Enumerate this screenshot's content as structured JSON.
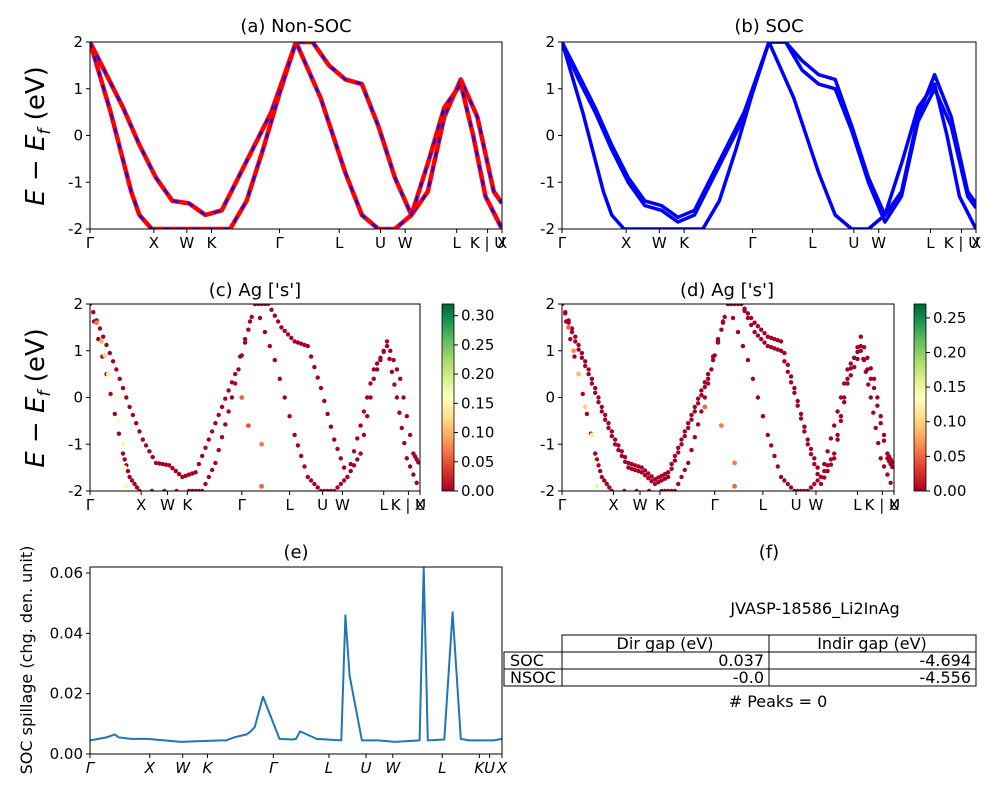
{
  "figure": {
    "band_ylabel": "E − E_f (eV)",
    "kpath_labels": [
      "Γ",
      "X",
      "W",
      "K",
      "Γ",
      "L",
      "U",
      "W",
      "L",
      "K | U",
      "X"
    ],
    "spillage_kpath_labels": [
      "Γ",
      "X",
      "W",
      "K",
      "Γ",
      "L",
      "U",
      "W",
      "L",
      "K",
      "U",
      "X"
    ]
  },
  "chart_data": [
    {
      "id": "a",
      "type": "line",
      "title": "(a) Non-SOC",
      "ylabel": "E − E_f (eV)",
      "ylim": [
        -2,
        2
      ],
      "yticks": [
        -2,
        -1,
        0,
        1,
        2
      ],
      "xticks": [
        "Γ",
        "X",
        "W",
        "K",
        "Γ",
        "L",
        "U",
        "W",
        "L",
        "K | U",
        "X"
      ],
      "series": [
        {
          "color": "#ff0000",
          "style": "solid",
          "x": [
            0,
            0.4,
            0.8,
            1.2,
            1.6,
            2.0,
            2.4,
            2.8,
            3.2,
            3.6,
            4.0,
            4.4,
            5.0,
            5.4,
            5.8,
            6.2,
            6.6,
            7.0,
            7.4,
            7.8,
            8.2,
            8.6,
            9.0,
            9.4,
            9.8,
            10.0
          ],
          "y": [
            2.0,
            1.3,
            0.6,
            -0.2,
            -0.9,
            -1.4,
            -1.45,
            -1.7,
            -1.6,
            -0.9,
            -0.2,
            0.5,
            2.0,
            2.0,
            1.5,
            1.2,
            1.1,
            0.2,
            -0.9,
            -1.7,
            -1.2,
            0.4,
            1.2,
            0.4,
            -1.2,
            -1.45
          ]
        },
        {
          "color": "#ff0000",
          "style": "solid",
          "x": [
            0,
            0.5,
            1.0,
            1.2,
            1.5,
            3.0,
            3.4,
            3.8,
            4.2,
            4.6,
            5.0,
            5.6,
            6.2,
            6.6,
            7.0,
            7.4,
            7.8,
            8.2,
            8.6,
            9.0,
            9.3,
            9.6,
            10.0
          ],
          "y": [
            2.0,
            0.5,
            -1.2,
            -1.7,
            -2.0,
            -2.0,
            -2.0,
            -1.4,
            -0.3,
            0.9,
            2.0,
            0.8,
            -0.8,
            -1.7,
            -2.0,
            -2.0,
            -1.7,
            -0.6,
            0.6,
            1.1,
            0.0,
            -1.3,
            -2.0
          ]
        }
      ]
    },
    {
      "id": "b",
      "type": "line",
      "title": "(b) SOC",
      "ylim": [
        -2,
        2
      ],
      "yticks": [
        -2,
        -1,
        0,
        1,
        2
      ],
      "xticks": [
        "Γ",
        "X",
        "W",
        "K",
        "Γ",
        "L",
        "U",
        "W",
        "L",
        "K | U",
        "X"
      ],
      "series": [
        {
          "color": "#0000ff",
          "style": "solid",
          "x": [
            0,
            0.4,
            0.8,
            1.2,
            1.6,
            2.0,
            2.4,
            2.8,
            3.2,
            3.6,
            4.0,
            4.4,
            5.0,
            5.4,
            5.8,
            6.2,
            6.6,
            7.0,
            7.4,
            7.8,
            8.2,
            8.6,
            9.0,
            9.4,
            9.8,
            10.0
          ],
          "y": [
            2.0,
            1.3,
            0.6,
            -0.2,
            -0.9,
            -1.4,
            -1.5,
            -1.75,
            -1.6,
            -0.9,
            -0.2,
            0.5,
            2.0,
            2.0,
            1.6,
            1.3,
            1.2,
            0.2,
            -0.9,
            -1.7,
            -1.2,
            0.4,
            1.3,
            0.4,
            -1.2,
            -1.45
          ]
        },
        {
          "color": "#0000ff",
          "style": "solid",
          "x": [
            0,
            0.4,
            0.8,
            1.2,
            1.6,
            2.0,
            2.4,
            2.8,
            3.2,
            3.6,
            4.0,
            4.4,
            5.0,
            5.4,
            5.8,
            6.2,
            6.6,
            7.0,
            7.4,
            7.8,
            8.2,
            8.6,
            9.0,
            9.4,
            9.8,
            10.0
          ],
          "y": [
            2.0,
            1.2,
            0.5,
            -0.3,
            -1.0,
            -1.5,
            -1.6,
            -1.85,
            -1.7,
            -1.0,
            -0.3,
            0.4,
            2.0,
            2.0,
            1.4,
            1.1,
            1.0,
            0.1,
            -1.0,
            -1.85,
            -1.3,
            0.3,
            1.0,
            0.2,
            -1.3,
            -1.55
          ]
        },
        {
          "color": "#0000ff",
          "style": "solid",
          "x": [
            0,
            0.5,
            1.0,
            1.2,
            1.5,
            3.0,
            3.4,
            3.8,
            4.2,
            4.6,
            5.0,
            5.6,
            6.2,
            6.6,
            7.0,
            7.4,
            7.8,
            8.2,
            8.6,
            9.0,
            9.3,
            9.6,
            10.0
          ],
          "y": [
            2.0,
            0.5,
            -1.2,
            -1.7,
            -2.0,
            -2.0,
            -2.0,
            -1.4,
            -0.3,
            0.9,
            2.0,
            0.8,
            -0.8,
            -1.7,
            -2.0,
            -2.0,
            -1.7,
            -0.6,
            0.6,
            1.1,
            0.0,
            -1.3,
            -2.0
          ]
        }
      ]
    },
    {
      "id": "c",
      "type": "scatter",
      "title": "(c)  Ag ['s']",
      "ylabel": "E − E_f (eV)",
      "ylim": [
        -2,
        2
      ],
      "yticks": [
        -2,
        -1,
        0,
        1,
        2
      ],
      "xticks": [
        "Γ",
        "X",
        "W",
        "K",
        "Γ",
        "L",
        "U",
        "W",
        "L",
        "K | U",
        "X"
      ],
      "colorbar": {
        "min": 0.0,
        "max": 0.32,
        "ticks": [
          "0.00",
          "0.05",
          "0.10",
          "0.15",
          "0.20",
          "0.25",
          "0.30"
        ],
        "cmap": "RdYlGn"
      },
      "highlight_points": [
        {
          "x": 0.2,
          "y": 1.6,
          "v": 0.07
        },
        {
          "x": 0.35,
          "y": 1.2,
          "v": 0.1
        },
        {
          "x": 0.45,
          "y": 0.9,
          "v": 0.12
        },
        {
          "x": 0.55,
          "y": 0.5,
          "v": 0.14
        },
        {
          "x": 0.7,
          "y": 0.0,
          "v": 0.16
        },
        {
          "x": 0.85,
          "y": -0.5,
          "v": 0.16
        },
        {
          "x": 1.0,
          "y": -1.0,
          "v": 0.15
        },
        {
          "x": 1.05,
          "y": -1.5,
          "v": 0.16
        },
        {
          "x": 1.1,
          "y": -1.9,
          "v": 0.17
        },
        {
          "x": 4.6,
          "y": 0.0,
          "v": 0.06
        },
        {
          "x": 4.8,
          "y": -0.6,
          "v": 0.05
        },
        {
          "x": 5.2,
          "y": -1.0,
          "v": 0.07
        },
        {
          "x": 5.2,
          "y": -1.9,
          "v": 0.06
        }
      ],
      "base_value": 0.0
    },
    {
      "id": "d",
      "type": "scatter",
      "title": "(d) Ag ['s']",
      "ylim": [
        -2,
        2
      ],
      "yticks": [
        -2,
        -1,
        0,
        1,
        2
      ],
      "xticks": [
        "Γ",
        "X",
        "W",
        "K",
        "Γ",
        "L",
        "U",
        "W",
        "L",
        "K | U",
        "X"
      ],
      "colorbar": {
        "min": 0.0,
        "max": 0.27,
        "ticks": [
          "0.00",
          "0.05",
          "0.10",
          "0.15",
          "0.20",
          "0.25"
        ],
        "cmap": "RdYlGn"
      },
      "highlight_points": [
        {
          "x": 0.2,
          "y": 1.5,
          "v": 0.05
        },
        {
          "x": 0.35,
          "y": 1.0,
          "v": 0.07
        },
        {
          "x": 0.5,
          "y": 0.5,
          "v": 0.09
        },
        {
          "x": 0.7,
          "y": -0.2,
          "v": 0.1
        },
        {
          "x": 0.9,
          "y": -0.8,
          "v": 0.12
        },
        {
          "x": 1.0,
          "y": -1.4,
          "v": 0.14
        },
        {
          "x": 1.05,
          "y": -1.9,
          "v": 0.15
        },
        {
          "x": 4.3,
          "y": -0.2,
          "v": 0.05
        },
        {
          "x": 4.8,
          "y": -0.6,
          "v": 0.06
        },
        {
          "x": 5.2,
          "y": -1.4,
          "v": 0.06
        },
        {
          "x": 5.2,
          "y": -1.9,
          "v": 0.05
        }
      ],
      "base_value": 0.0
    },
    {
      "id": "e",
      "type": "line",
      "title": "(e)",
      "ylabel": "SOC spillage (chg. den. unit)",
      "ylim": [
        0,
        0.062
      ],
      "yticks": [
        "0.00",
        "0.02",
        "0.04",
        "0.06"
      ],
      "xticks": [
        "Γ",
        "X",
        "W",
        "K",
        "Γ",
        "L",
        "U",
        "W",
        "L",
        "K",
        "U",
        "X"
      ],
      "series": [
        {
          "color": "#1f77b4",
          "x": [
            0,
            0.4,
            0.6,
            0.7,
            1.0,
            1.4,
            1.8,
            2.2,
            2.6,
            3.2,
            3.3,
            3.5,
            3.8,
            3.9,
            4.0,
            4.2,
            4.6,
            4.9,
            5.0,
            5.1,
            5.5,
            6.1,
            6.2,
            6.3,
            6.6,
            7.0,
            7.4,
            8.0,
            8.1,
            8.2,
            8.6,
            8.8,
            8.9,
            9.0,
            9.2,
            9.8,
            10.0
          ],
          "y": [
            0.0045,
            0.0055,
            0.0065,
            0.0055,
            0.005,
            0.005,
            0.0045,
            0.004,
            0.0042,
            0.0045,
            0.0045,
            0.0055,
            0.0065,
            0.0075,
            0.009,
            0.019,
            0.005,
            0.0048,
            0.005,
            0.0075,
            0.005,
            0.0045,
            0.046,
            0.026,
            0.0045,
            0.0045,
            0.004,
            0.0045,
            0.062,
            0.0045,
            0.0048,
            0.047,
            0.026,
            0.005,
            0.0045,
            0.0045,
            0.005
          ]
        }
      ]
    }
  ],
  "table": {
    "title": "(f)",
    "material": "JVASP-18586_Li2InAg",
    "headers": [
      "",
      "Dir gap (eV)",
      "Indir gap (eV)"
    ],
    "rows": [
      [
        "SOC",
        "0.037",
        "-4.694"
      ],
      [
        "NSOC",
        "-0.0",
        "-4.556"
      ]
    ],
    "peaks": "# Peaks = 0"
  }
}
